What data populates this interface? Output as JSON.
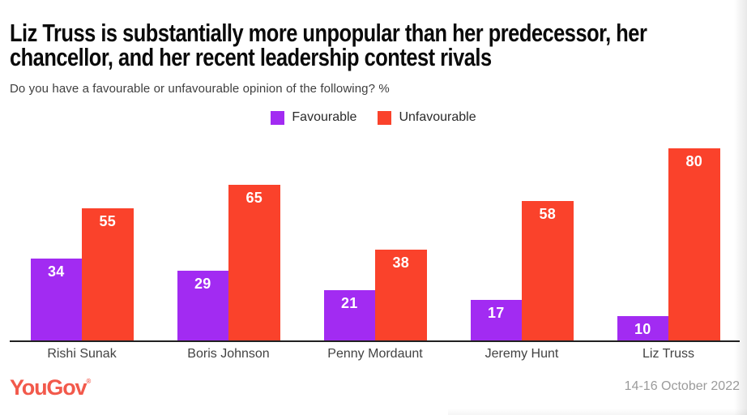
{
  "title_line1": "Liz Truss is substantially more unpopular than her predecessor, her",
  "title_line2": "chancellor, and her recent leadership contest rivals",
  "subtitle": "Do you have a favourable or unfavourable opinion of the following? %",
  "legend": {
    "favourable_label": "Favourable",
    "unfavourable_label": "Unfavourable"
  },
  "colors": {
    "favourable": "#A22BF2",
    "unfavourable": "#FA422B",
    "brand": "#F2594B",
    "axis": "#212121"
  },
  "footer": {
    "brand": "YouGov",
    "trademark": "®",
    "date_range": "14-16 October 2022"
  },
  "chart_data": {
    "type": "bar",
    "title": "Liz Truss is substantially more unpopular than her predecessor, her chancellor, and her recent leadership contest rivals",
    "subtitle": "Do you have a favourable or unfavourable opinion of the following? %",
    "categories": [
      "Rishi Sunak",
      "Boris Johnson",
      "Penny Mordaunt",
      "Jeremy Hunt",
      "Liz Truss"
    ],
    "series": [
      {
        "name": "Favourable",
        "color": "#A22BF2",
        "values": [
          34,
          29,
          21,
          17,
          10
        ]
      },
      {
        "name": "Unfavourable",
        "color": "#FA422B",
        "values": [
          55,
          65,
          38,
          58,
          80
        ]
      }
    ],
    "xlabel": "",
    "ylabel": "%",
    "ylim": [
      0,
      85
    ],
    "grid": false,
    "value_labels": true,
    "legend_position": "top-center"
  }
}
